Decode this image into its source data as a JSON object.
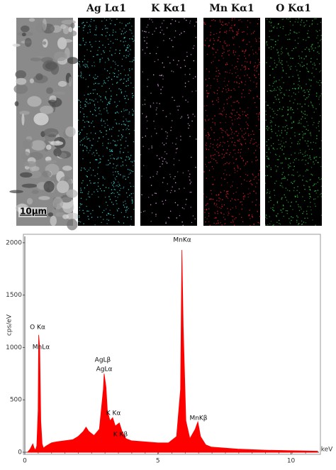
{
  "maps": {
    "labels": [
      "Ag Lα1",
      "K Kα1",
      "Mn Kα1",
      "O Kα1"
    ],
    "colors": [
      "#3fd6d6",
      "#e6a8e6",
      "#e0202a",
      "#35c040"
    ],
    "scale_bar": "10μm"
  },
  "chart_data": {
    "type": "area",
    "color": "#ff0000",
    "x_label": "keV",
    "y_label": "cps/eV",
    "x": [
      0.1,
      0.2,
      0.3,
      0.35,
      0.4,
      0.45,
      0.5,
      0.52,
      0.56,
      0.6,
      0.65,
      0.7,
      0.8,
      1.0,
      1.2,
      1.5,
      1.8,
      2.0,
      2.2,
      2.3,
      2.4,
      2.6,
      2.8,
      2.95,
      2.98,
      3.05,
      3.1,
      3.2,
      3.3,
      3.4,
      3.55,
      3.65,
      3.8,
      4.0,
      4.5,
      5.0,
      5.4,
      5.7,
      5.85,
      5.9,
      5.95,
      6.05,
      6.2,
      6.4,
      6.5,
      6.6,
      6.8,
      7.0,
      8.0,
      9.0,
      10.0,
      11.0
    ],
    "values": [
      0,
      30,
      80,
      40,
      20,
      60,
      400,
      1120,
      1000,
      300,
      80,
      40,
      60,
      90,
      100,
      110,
      120,
      150,
      200,
      240,
      200,
      160,
      220,
      600,
      750,
      620,
      400,
      300,
      330,
      250,
      280,
      200,
      130,
      110,
      100,
      90,
      90,
      150,
      600,
      1930,
      1200,
      300,
      130,
      220,
      290,
      150,
      70,
      50,
      30,
      20,
      15,
      10
    ],
    "annotations": [
      "O Kα",
      "MnLα",
      "AgLβ",
      "AgLα",
      "K Kα",
      "K Kβ",
      "MnKα",
      "MnKβ"
    ],
    "xlim": [
      0,
      11.05
    ],
    "ylim": [
      0,
      2060
    ],
    "xticks": [
      0,
      5,
      10
    ],
    "yticks": [
      0,
      500,
      1000,
      1500,
      2000
    ]
  }
}
